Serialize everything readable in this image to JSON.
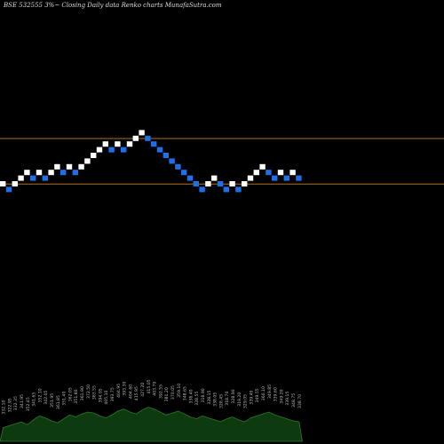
{
  "header": {
    "title": "BSE 532555 3%~   Closing Daily data  Renko  charts MunafaSutra.com"
  },
  "colors": {
    "background": "#000000",
    "up_brick": "#ffffff",
    "down_brick": "#1e6fe8",
    "reference_line": "#b07020",
    "volume_fill": "#0e3a10",
    "volume_stroke": "#2a7a2a",
    "label": "#bbbbbb"
  },
  "chart_data": {
    "type": "renko",
    "title": "BSE 532555 3%~   Closing Daily data  Renko  charts MunafaSutra.com",
    "bricks": [
      {
        "dir": "up",
        "level": 0
      },
      {
        "dir": "down",
        "level": -1
      },
      {
        "dir": "up",
        "level": 0
      },
      {
        "dir": "up",
        "level": 1
      },
      {
        "dir": "up",
        "level": 2
      },
      {
        "dir": "down",
        "level": 1
      },
      {
        "dir": "up",
        "level": 2
      },
      {
        "dir": "down",
        "level": 1
      },
      {
        "dir": "up",
        "level": 2
      },
      {
        "dir": "up",
        "level": 3
      },
      {
        "dir": "down",
        "level": 2
      },
      {
        "dir": "up",
        "level": 3
      },
      {
        "dir": "down",
        "level": 2
      },
      {
        "dir": "up",
        "level": 3
      },
      {
        "dir": "up",
        "level": 4
      },
      {
        "dir": "up",
        "level": 5
      },
      {
        "dir": "up",
        "level": 6
      },
      {
        "dir": "up",
        "level": 7
      },
      {
        "dir": "down",
        "level": 6
      },
      {
        "dir": "up",
        "level": 7
      },
      {
        "dir": "down",
        "level": 6
      },
      {
        "dir": "up",
        "level": 7
      },
      {
        "dir": "up",
        "level": 8
      },
      {
        "dir": "up",
        "level": 9
      },
      {
        "dir": "down",
        "level": 8
      },
      {
        "dir": "down",
        "level": 7
      },
      {
        "dir": "down",
        "level": 6
      },
      {
        "dir": "down",
        "level": 5
      },
      {
        "dir": "down",
        "level": 4
      },
      {
        "dir": "down",
        "level": 3
      },
      {
        "dir": "down",
        "level": 2
      },
      {
        "dir": "down",
        "level": 1
      },
      {
        "dir": "down",
        "level": 0
      },
      {
        "dir": "down",
        "level": -1
      },
      {
        "dir": "up",
        "level": 0
      },
      {
        "dir": "up",
        "level": 1
      },
      {
        "dir": "down",
        "level": 0
      },
      {
        "dir": "down",
        "level": -1
      },
      {
        "dir": "up",
        "level": 0
      },
      {
        "dir": "down",
        "level": -1
      },
      {
        "dir": "up",
        "level": 0
      },
      {
        "dir": "up",
        "level": 1
      },
      {
        "dir": "up",
        "level": 2
      },
      {
        "dir": "up",
        "level": 3
      },
      {
        "dir": "down",
        "level": 2
      },
      {
        "dir": "down",
        "level": 1
      },
      {
        "dir": "up",
        "level": 2
      },
      {
        "dir": "down",
        "level": 1
      },
      {
        "dir": "up",
        "level": 2
      },
      {
        "dir": "down",
        "level": 1
      }
    ],
    "reference_levels": [
      8.5,
      0.5
    ],
    "volume": [
      14,
      16,
      18,
      20,
      17,
      22,
      26,
      24,
      21,
      19,
      23,
      27,
      25,
      28,
      30,
      29,
      26,
      24,
      27,
      31,
      33,
      30,
      28,
      32,
      35,
      33,
      30,
      27,
      29,
      31,
      28,
      25,
      23,
      26,
      24,
      22,
      20,
      23,
      25,
      22,
      20,
      24,
      26,
      28,
      30,
      27,
      25,
      23,
      21,
      20
    ],
    "brick_labels": [
      "332.10",
      "322.95",
      "332.35",
      "341.95",
      "352.45",
      "341.65",
      "352.10",
      "342.05",
      "351.95",
      "361.85",
      "351.40",
      "362.05",
      "351.80",
      "361.90",
      "372.50",
      "383.55",
      "394.05",
      "405.10",
      "393.75",
      "404.95",
      "393.30",
      "404.60",
      "415.95",
      "427.20",
      "415.05",
      "403.70",
      "392.55",
      "381.20",
      "370.05",
      "359.10",
      "348.65",
      "338.40",
      "328.55",
      "318.90",
      "328.15",
      "338.05",
      "328.45",
      "318.70",
      "328.90",
      "319.20",
      "329.05",
      "339.40",
      "349.55",
      "360.10",
      "349.85",
      "339.60",
      "349.20",
      "339.15",
      "348.75",
      "338.70"
    ]
  }
}
